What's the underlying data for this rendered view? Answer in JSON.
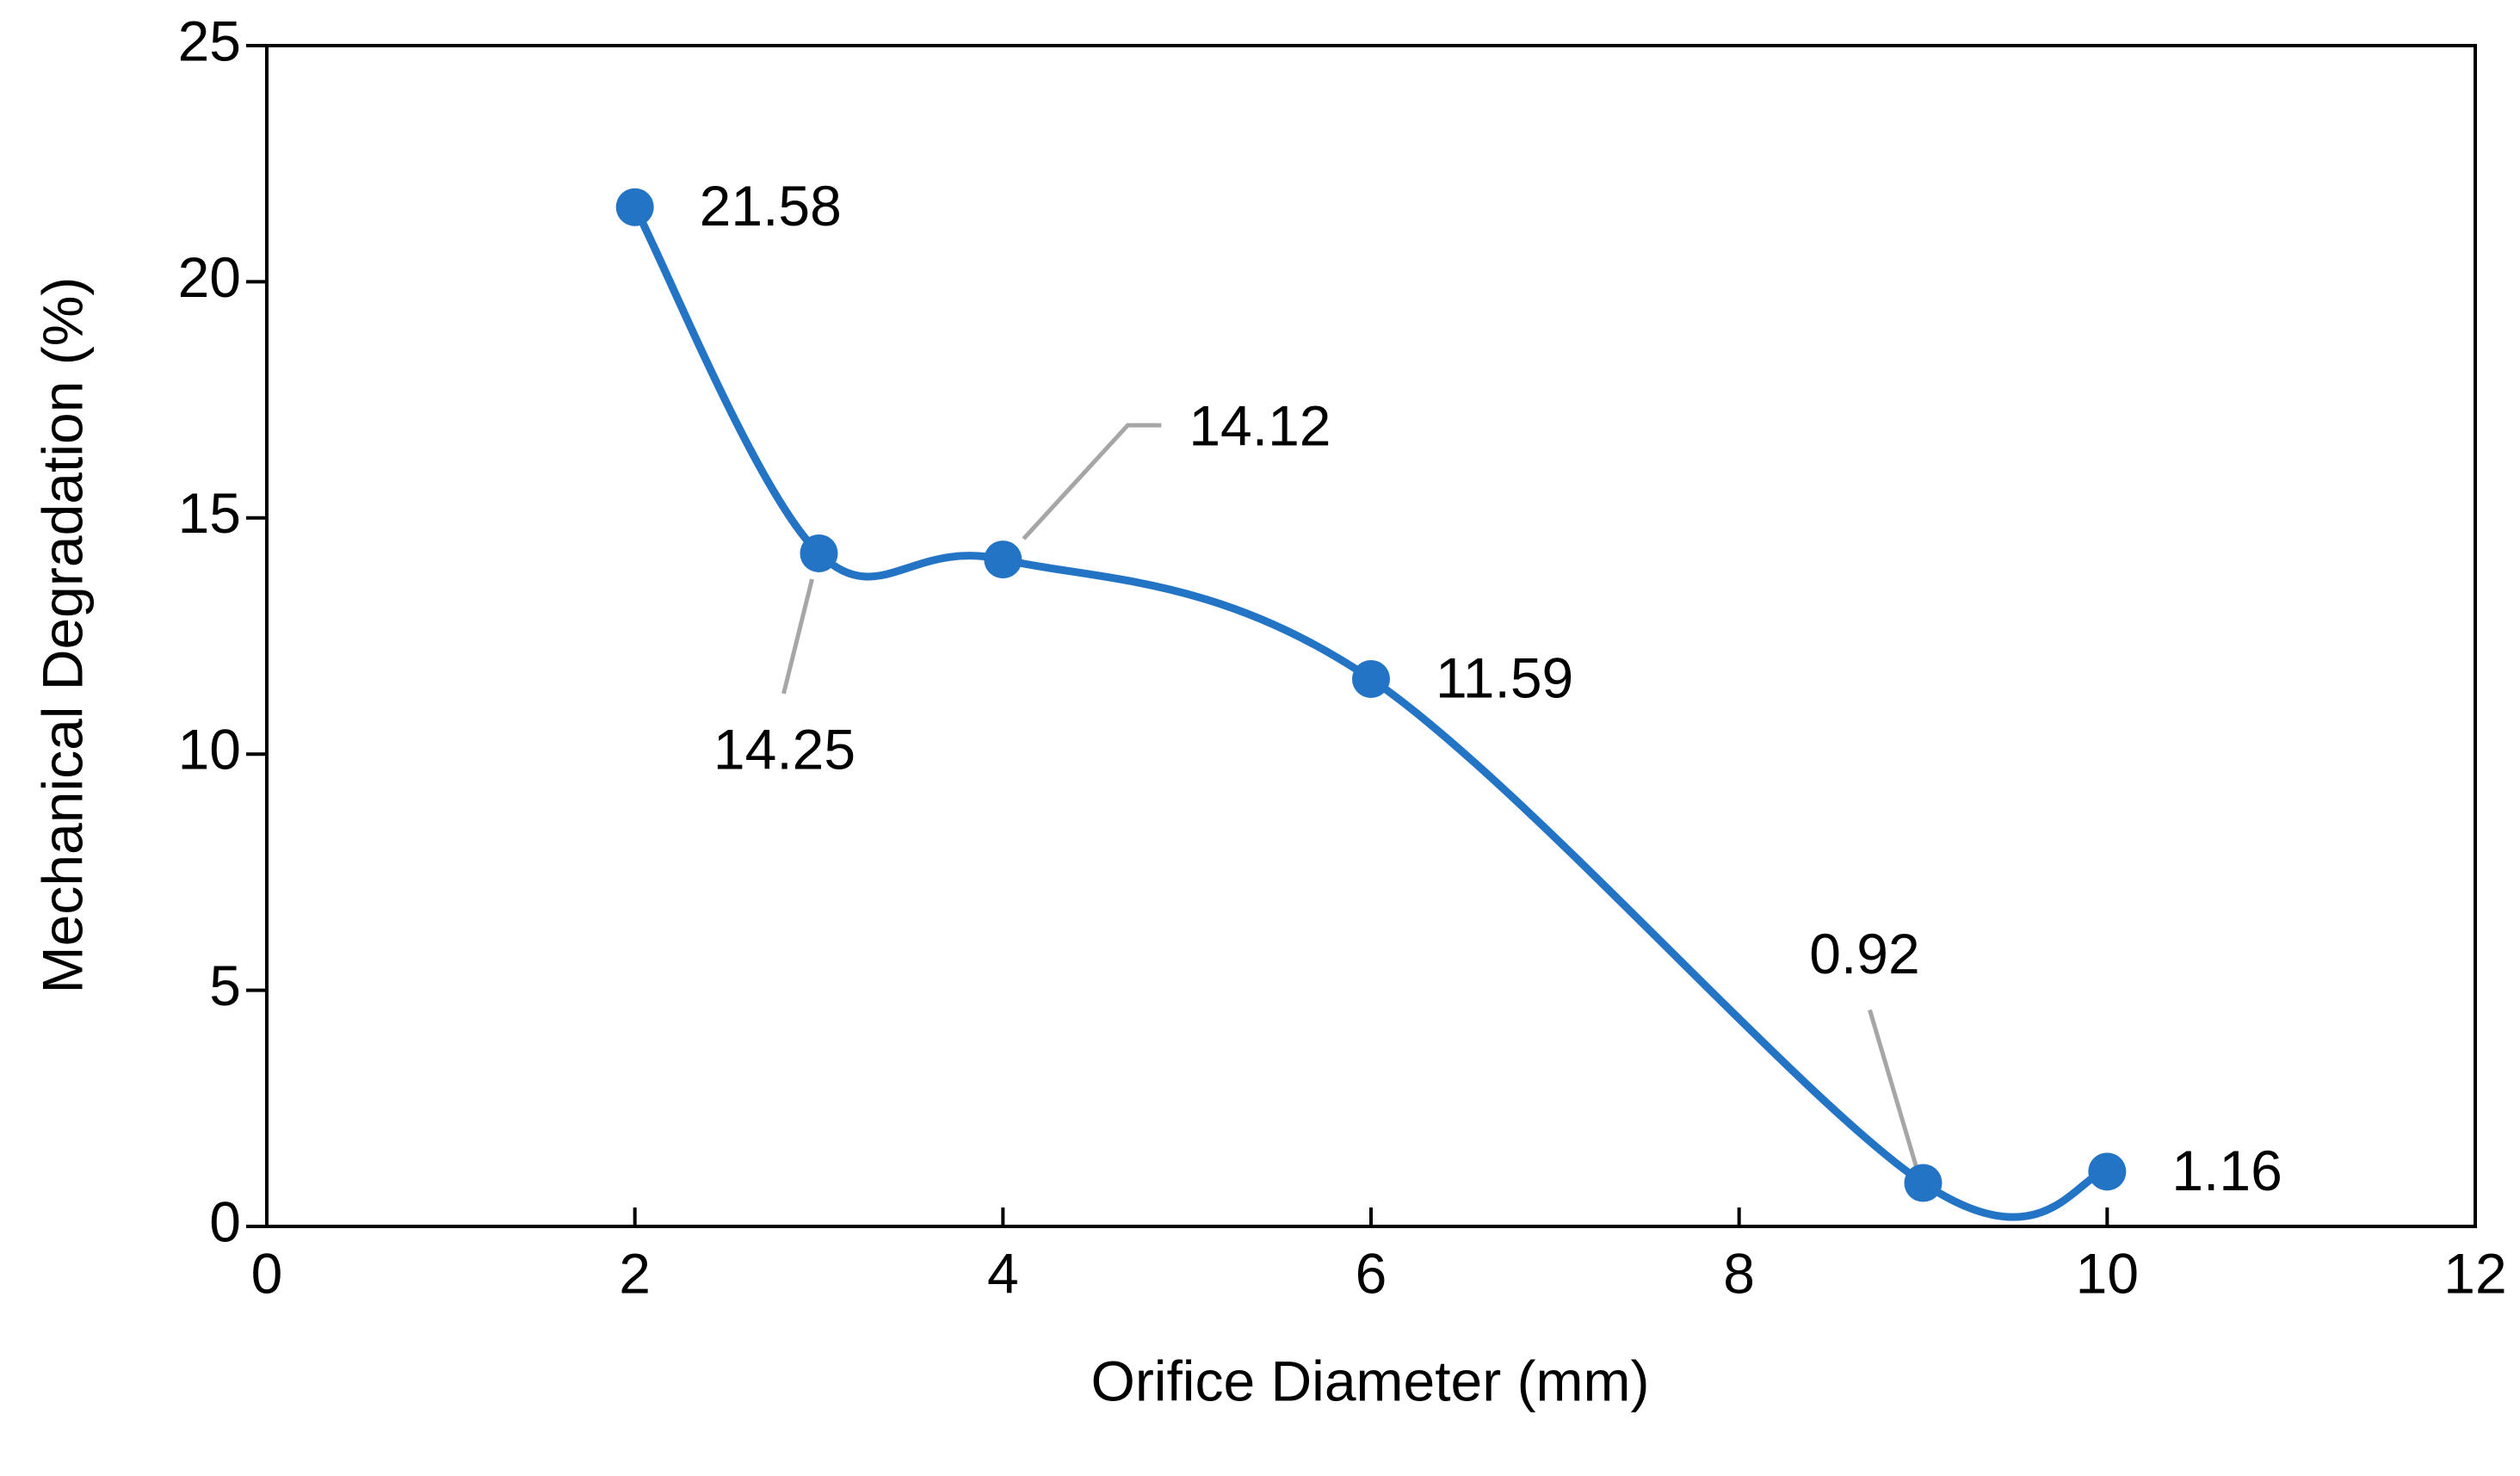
{
  "chart_data": {
    "type": "line",
    "x_label": "Orifice Diameter (mm)",
    "y_label": "Mechanical Degradation (%)",
    "x": [
      2,
      3,
      4,
      6,
      9,
      10
    ],
    "values": [
      21.58,
      14.25,
      14.12,
      11.59,
      0.92,
      1.16
    ],
    "color": "#2474c6",
    "smooth": true,
    "markers": true,
    "data_labels": true,
    "xlim": [
      0,
      12
    ],
    "xticks": [
      0,
      2,
      4,
      6,
      8,
      10,
      12
    ],
    "ylim": [
      0,
      25
    ],
    "yticks": [
      0,
      5,
      10,
      15,
      20,
      25
    ],
    "grid": false
  }
}
